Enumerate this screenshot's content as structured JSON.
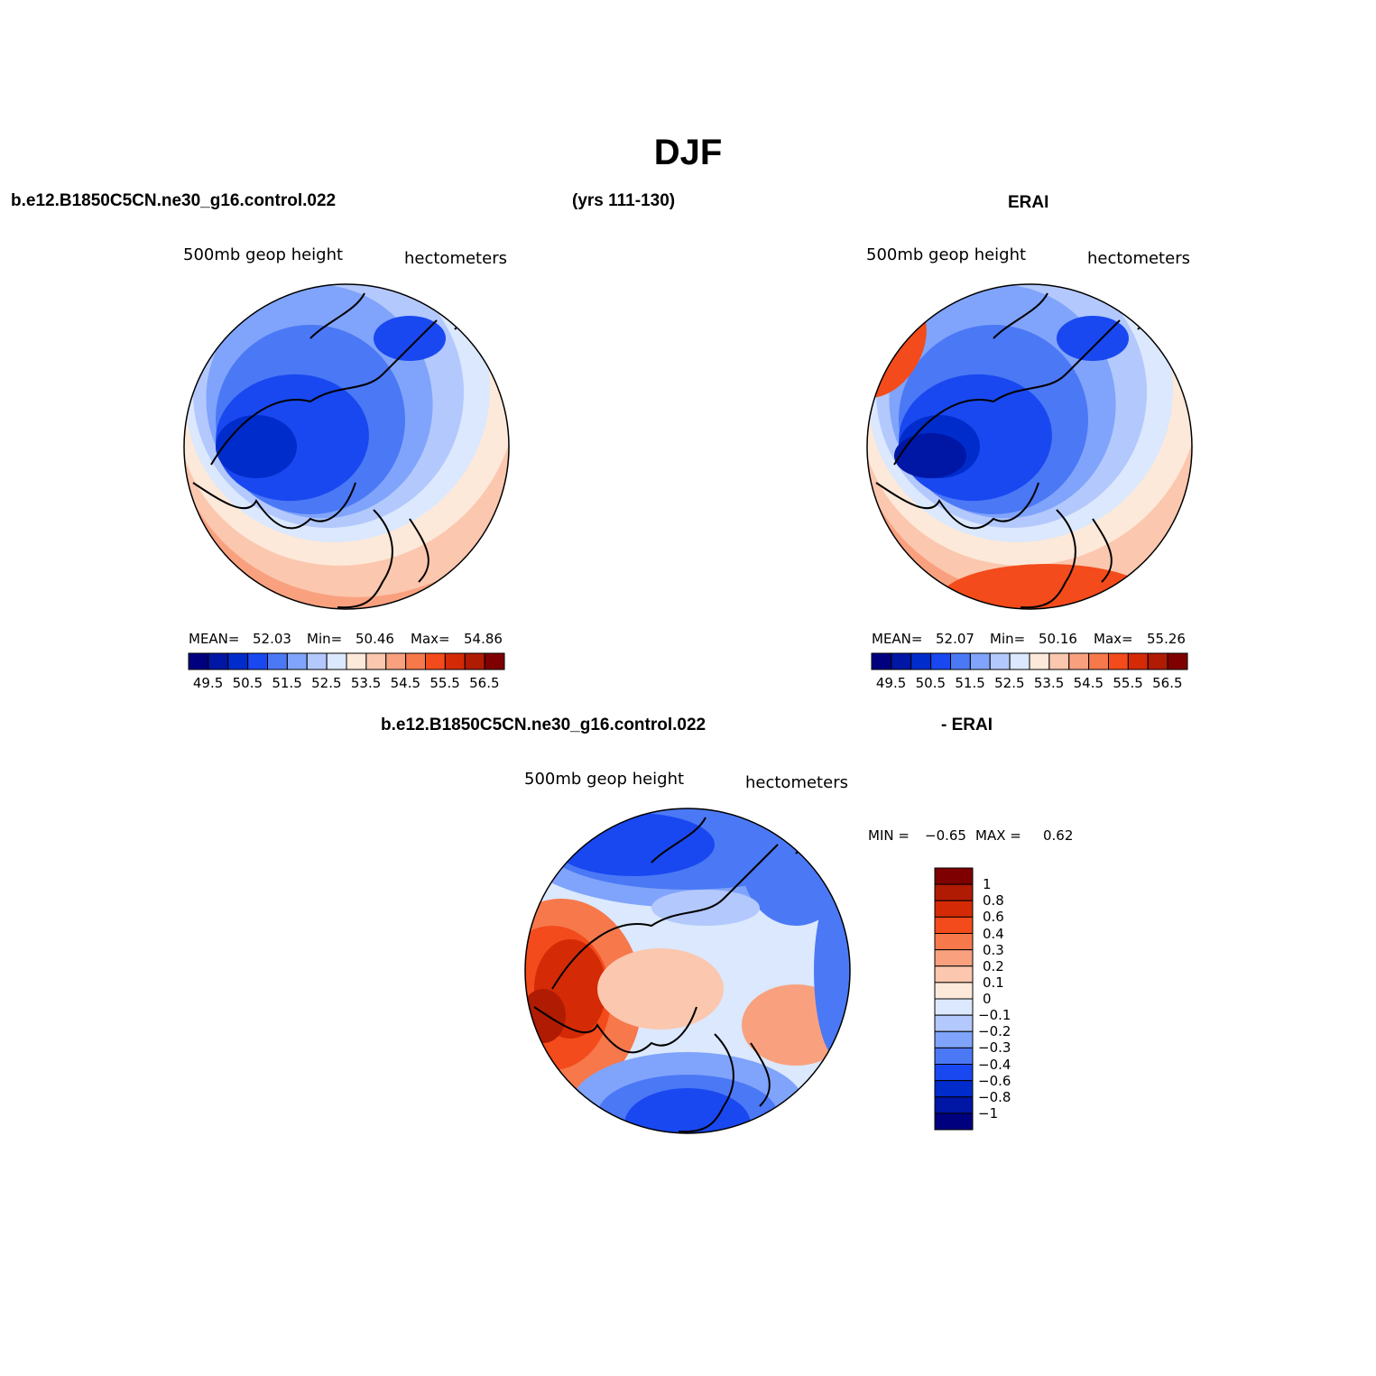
{
  "figure": {
    "title": "DJF",
    "model_name": "b.e12.B1850C5CN.ne30_g16.control.022",
    "model_years": "(yrs 111-130)",
    "obs_name": "ERAI",
    "diff_title_left": "b.e12.B1850C5CN.ne30_g16.control.022",
    "diff_title_right": "- ERAI"
  },
  "colors": {
    "abs_scale": [
      "#00007f",
      "#0016a4",
      "#002ccb",
      "#1948f0",
      "#4b78f5",
      "#80a4fb",
      "#b3c8fc",
      "#dbe8fd",
      "#fde9da",
      "#fbc7ae",
      "#f9a17f",
      "#f6784b",
      "#f34b1b",
      "#d42a06",
      "#b01b03",
      "#7f0000"
    ],
    "land_outline": "#000000"
  },
  "chart_data": [
    {
      "type": "heatmap",
      "panel": "model",
      "projection": "north polar stereographic",
      "field_label": "500mb geop height",
      "units": "hectometers",
      "stats": {
        "mean_label": "MEAN=",
        "mean": "52.03",
        "min_label": "Min=",
        "min": "50.46",
        "max_label": "Max=",
        "max": "54.86"
      },
      "colorbar_ticks": [
        "49.5",
        "50.5",
        "51.5",
        "52.5",
        "53.5",
        "54.5",
        "55.5",
        "56.5"
      ],
      "contour_levels": [
        49.5,
        50,
        50.5,
        51,
        51.5,
        52,
        52.5,
        53,
        53.5,
        54,
        54.5,
        55,
        55.5,
        56,
        56.5
      ]
    },
    {
      "type": "heatmap",
      "panel": "obs",
      "projection": "north polar stereographic",
      "field_label": "500mb geop height",
      "units": "hectometers",
      "stats": {
        "mean_label": "MEAN=",
        "mean": "52.07",
        "min_label": "Min=",
        "min": "50.16",
        "max_label": "Max=",
        "max": "55.26"
      },
      "colorbar_ticks": [
        "49.5",
        "50.5",
        "51.5",
        "52.5",
        "53.5",
        "54.5",
        "55.5",
        "56.5"
      ],
      "contour_levels": [
        49.5,
        50,
        50.5,
        51,
        51.5,
        52,
        52.5,
        53,
        53.5,
        54,
        54.5,
        55,
        55.5,
        56,
        56.5
      ]
    },
    {
      "type": "heatmap",
      "panel": "difference",
      "projection": "north polar stereographic",
      "field_label": "500mb geop height",
      "units": "hectometers",
      "stats": {
        "min_label": "MIN =",
        "min": "−0.65",
        "max_label": "MAX =",
        "max": "0.62"
      },
      "colorbar_ticks": [
        "1",
        "0.8",
        "0.6",
        "0.4",
        "0.3",
        "0.2",
        "0.1",
        "0",
        "−0.1",
        "−0.2",
        "−0.3",
        "−0.4",
        "−0.6",
        "−0.8",
        "−1"
      ],
      "colorbar_colors": [
        "#7f0000",
        "#b01b03",
        "#d42a06",
        "#f34b1b",
        "#f6784b",
        "#f9a17f",
        "#fbc7ae",
        "#fde9da",
        "#dbe8fd",
        "#b3c8fc",
        "#80a4fb",
        "#4b78f5",
        "#1948f0",
        "#002ccb",
        "#0016a4",
        "#00007f"
      ]
    }
  ]
}
